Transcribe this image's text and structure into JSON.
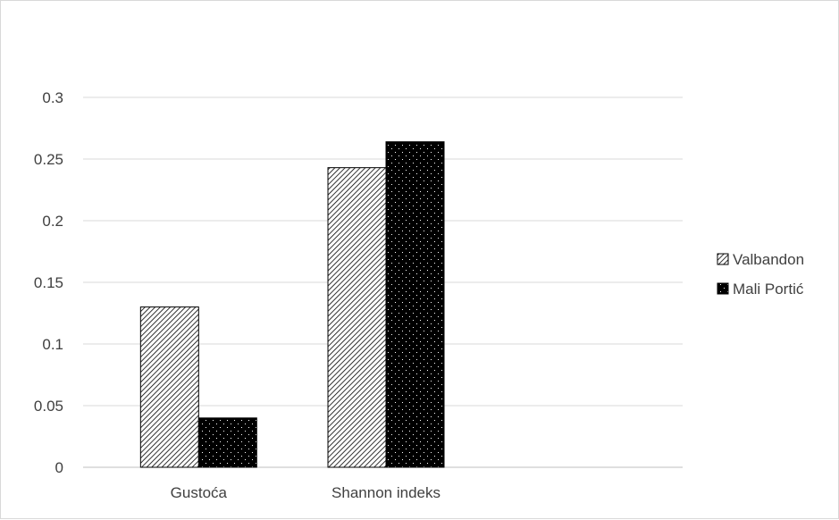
{
  "chart_data": {
    "type": "bar",
    "title": "",
    "xlabel": "",
    "ylabel": "",
    "categories": [
      "Gustoća",
      "Shannon indeks"
    ],
    "series": [
      {
        "name": "Valbandon",
        "values": [
          0.13,
          0.243
        ],
        "pattern": "diagonal-hatch",
        "color": "#000000"
      },
      {
        "name": "Mali Portić",
        "values": [
          0.04,
          0.264
        ],
        "pattern": "dots-on-black",
        "color": "#000000"
      }
    ],
    "ylim": [
      0,
      0.3
    ],
    "yticks": [
      "0",
      "0.05",
      "0.1",
      "0.15",
      "0.2",
      "0.25",
      "0.3"
    ],
    "grid": true,
    "legend_position": "right"
  }
}
